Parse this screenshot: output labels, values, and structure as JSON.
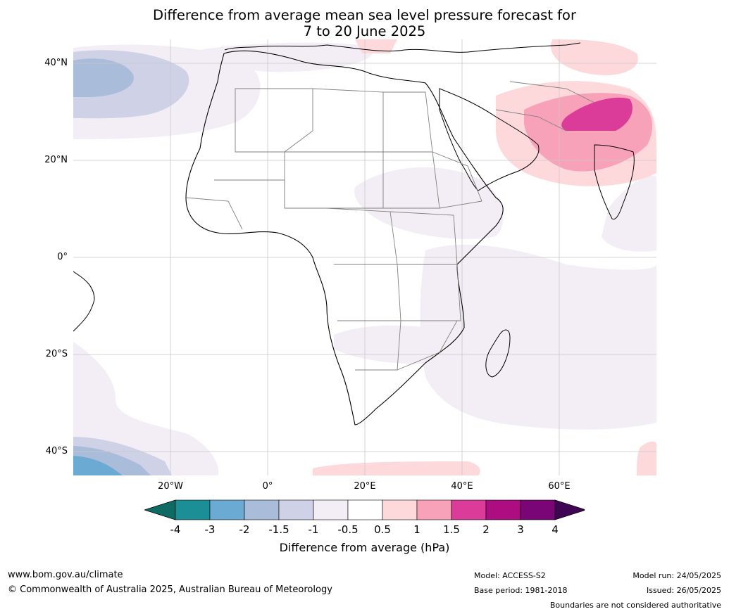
{
  "title_line1": "Difference from average mean sea level pressure forecast for",
  "title_line2": "7 to 20 June 2025",
  "lat_labels": [
    "40°N",
    "20°N",
    "0°",
    "20°S",
    "40°S"
  ],
  "lon_labels": [
    "20°W",
    "0°",
    "20°E",
    "40°E",
    "60°E"
  ],
  "colorbar": {
    "ticks": [
      "-4",
      "-3",
      "-2",
      "-1.5",
      "-1",
      "-0.5",
      "0.5",
      "1",
      "1.5",
      "2",
      "3",
      "4"
    ],
    "colors": [
      "#0e6b63",
      "#1c8f96",
      "#6aaad3",
      "#a9bcda",
      "#cfd1e6",
      "#f3eef6",
      "#ffffff",
      "#fdd9dc",
      "#f8a2ba",
      "#db3b99",
      "#ad0d81",
      "#7a0577",
      "#3f0454"
    ],
    "title": "Difference from average (hPa)"
  },
  "footer": {
    "url": "www.bom.gov.au/climate",
    "copyright": "© Commonwealth of Australia 2025, Australian Bureau of Meteorology",
    "model": "Model: ACCESS-S2",
    "base_period": "Base period: 1981-2018",
    "model_run": "Model run: 24/05/2025",
    "issued": "Issued: 26/05/2025",
    "disclaimer": "Boundaries are not considered authoritative"
  }
}
